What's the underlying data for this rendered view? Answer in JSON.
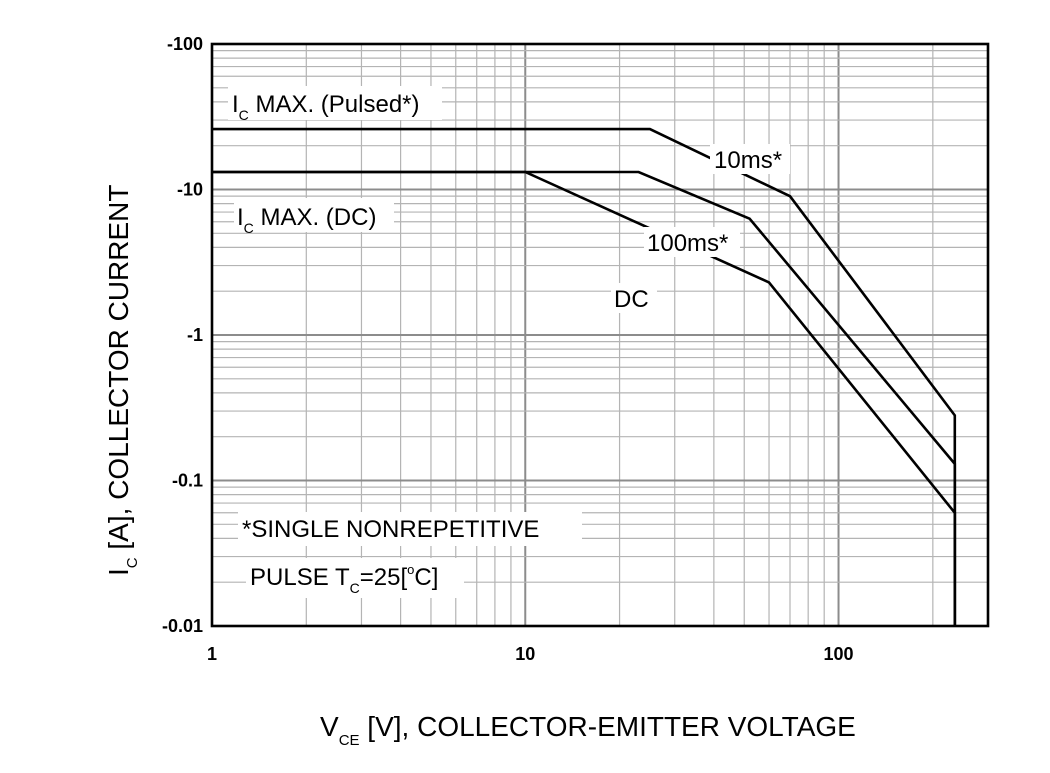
{
  "chart_data": {
    "type": "line",
    "xscale": "log",
    "yscale": "log",
    "xlim": [
      1,
      300
    ],
    "ylim": [
      -0.01,
      -100
    ],
    "grid": true,
    "xlabel": {
      "main": "V",
      "sub": "CE",
      "rest": " [V], COLLECTOR-EMITTER VOLTAGE"
    },
    "ylabel": {
      "main": "I",
      "sub": "C",
      "rest": " [A], COLLECTOR CURRENT"
    },
    "x_ticks": [
      {
        "value": 1,
        "label": "1"
      },
      {
        "value": 10,
        "label": "10"
      },
      {
        "value": 100,
        "label": "100"
      }
    ],
    "y_ticks": [
      {
        "value": 100,
        "label": "-100"
      },
      {
        "value": 10,
        "label": "-10"
      },
      {
        "value": 1,
        "label": "-1"
      },
      {
        "value": 0.1,
        "label": "-0.1"
      },
      {
        "value": 0.01,
        "label": "-0.01"
      }
    ],
    "series": [
      {
        "name": "10ms*",
        "x": [
          1,
          25,
          70,
          235,
          235
        ],
        "y": [
          26,
          26,
          9,
          0.28,
          0.01
        ]
      },
      {
        "name": "100ms*",
        "x": [
          1,
          23,
          52,
          235,
          235
        ],
        "y": [
          13.2,
          13.2,
          6.3,
          0.13,
          0.01
        ]
      },
      {
        "name": "DC",
        "x": [
          1,
          10,
          60,
          235,
          235
        ],
        "y": [
          13.2,
          13.2,
          2.3,
          0.06,
          0.01
        ]
      }
    ],
    "annotations": {
      "ic_max_pulsed": {
        "main": "I",
        "sub": "C",
        "rest": " MAX. (Pulsed*)"
      },
      "ic_max_dc": {
        "main": "I",
        "sub": "C",
        "rest": " MAX. (DC)"
      },
      "label_10ms": "10ms*",
      "label_100ms": "100ms*",
      "label_dc": "DC",
      "note_line1": "*SINGLE NONREPETITIVE",
      "note_line2": {
        "pre": "PULSE T",
        "sub": "C",
        "mid": "=25[",
        "sup": "o",
        "post": "C]"
      }
    }
  }
}
